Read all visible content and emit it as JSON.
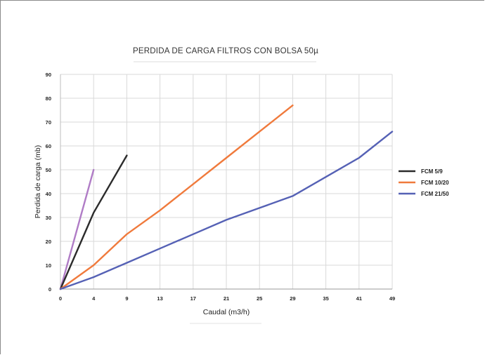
{
  "chart_data": {
    "type": "line",
    "title": "PERDIDA DE CARGA FILTROS CON BOLSA 50µ",
    "xlabel": "Caudal (m3/h)",
    "ylabel": "Perdida de carga (mb)",
    "categories": [
      "0",
      "4",
      "9",
      "13",
      "17",
      "21",
      "25",
      "29",
      "35",
      "41",
      "49"
    ],
    "ylim": [
      0,
      90
    ],
    "yticks": [
      0,
      10,
      20,
      30,
      40,
      50,
      60,
      70,
      80,
      90
    ],
    "grid": true,
    "legend_position": "right",
    "series": [
      {
        "name": "",
        "color": "#b07cc6",
        "points": [
          [
            0,
            0
          ],
          [
            4,
            50
          ]
        ]
      },
      {
        "name": "FCM 5/9",
        "color": "#2b2b2b",
        "points": [
          [
            0,
            0
          ],
          [
            4,
            32
          ],
          [
            9,
            56
          ]
        ]
      },
      {
        "name": "FCM 10/20",
        "color": "#f07a3c",
        "points": [
          [
            0,
            0
          ],
          [
            4,
            10
          ],
          [
            9,
            23
          ],
          [
            13,
            33
          ],
          [
            17,
            44
          ],
          [
            21,
            55
          ],
          [
            25,
            66
          ],
          [
            29,
            77
          ]
        ]
      },
      {
        "name": "FCM 21/50",
        "color": "#5561b5",
        "points": [
          [
            0,
            0
          ],
          [
            4,
            5
          ],
          [
            9,
            11
          ],
          [
            13,
            17
          ],
          [
            17,
            23
          ],
          [
            21,
            29
          ],
          [
            25,
            34
          ],
          [
            29,
            39
          ],
          [
            35,
            47
          ],
          [
            41,
            55
          ],
          [
            49,
            66
          ]
        ]
      }
    ]
  }
}
